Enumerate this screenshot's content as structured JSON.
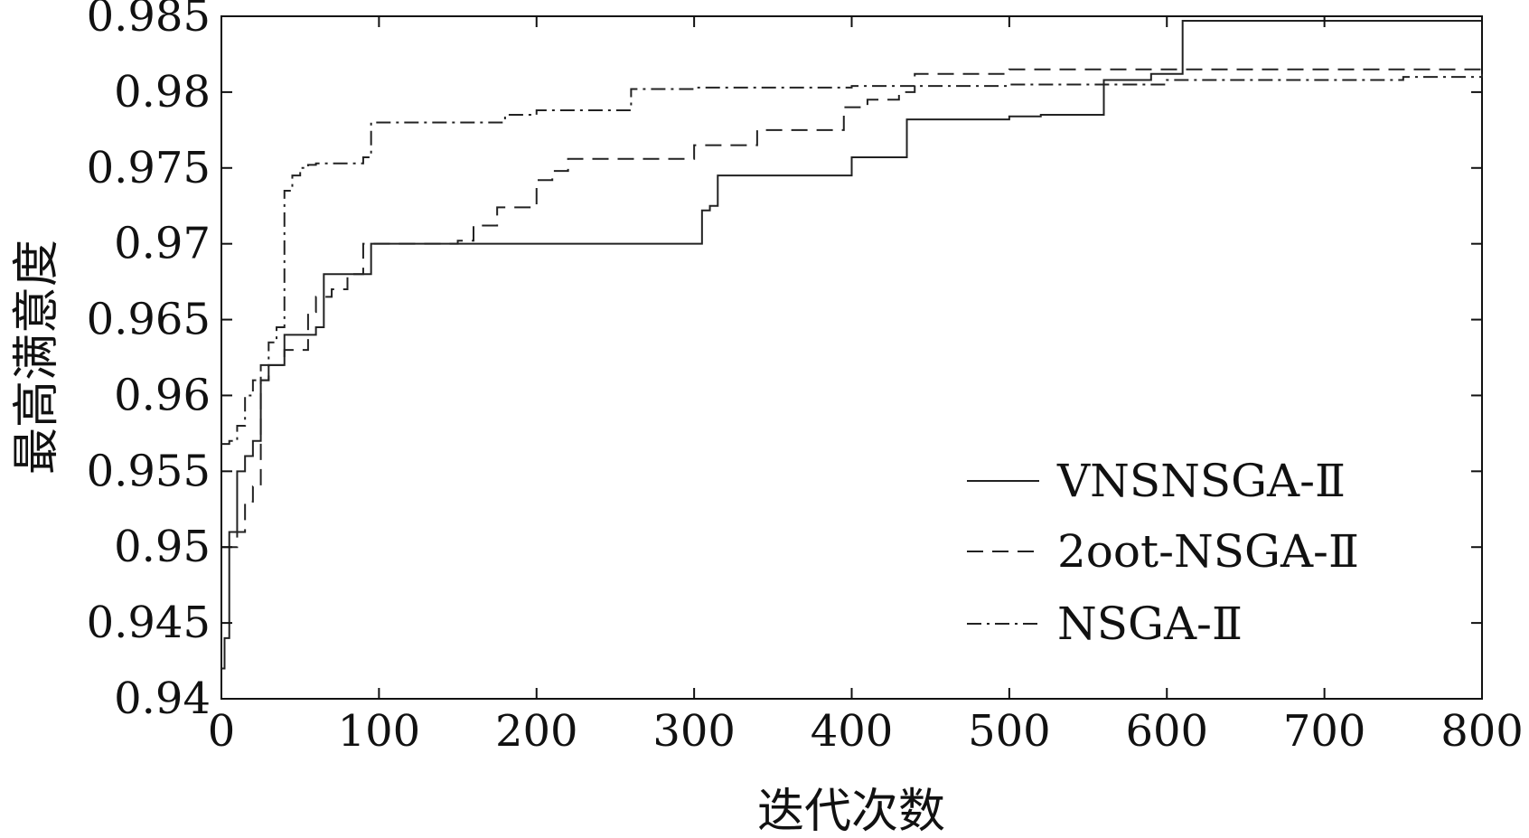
{
  "chart_data": {
    "type": "line",
    "title": "",
    "xlabel": "迭代次数",
    "ylabel": "最高满意度",
    "xlim": [
      0,
      800
    ],
    "ylim": [
      0.94,
      0.985
    ],
    "xticks": [
      0,
      100,
      200,
      300,
      400,
      500,
      600,
      700,
      800
    ],
    "xtick_labels": [
      "0",
      "100",
      "200",
      "300",
      "400",
      "500",
      "600",
      "700",
      "800"
    ],
    "yticks": [
      0.94,
      0.945,
      0.95,
      0.955,
      0.96,
      0.965,
      0.97,
      0.975,
      0.98,
      0.985
    ],
    "ytick_labels": [
      "0.94",
      "0.945",
      "0.95",
      "0.955",
      "0.96",
      "0.965",
      "0.97",
      "0.975",
      "0.98",
      "0.985"
    ],
    "grid": false,
    "legend_position": "bottom-right",
    "series": [
      {
        "name": "VNSNSGA-Ⅱ",
        "dash": "solid",
        "x": [
          0,
          2,
          5,
          10,
          15,
          20,
          25,
          30,
          40,
          50,
          60,
          65,
          75,
          90,
          95,
          150,
          200,
          250,
          300,
          305,
          310,
          315,
          350,
          380,
          400,
          420,
          435,
          450,
          500,
          520,
          555,
          560,
          590,
          600,
          605,
          610,
          650,
          700,
          750,
          800
        ],
        "y": [
          0.942,
          0.944,
          0.951,
          0.955,
          0.956,
          0.957,
          0.961,
          0.962,
          0.964,
          0.964,
          0.9645,
          0.968,
          0.968,
          0.968,
          0.97,
          0.97,
          0.97,
          0.97,
          0.97,
          0.9722,
          0.9725,
          0.9745,
          0.9745,
          0.9745,
          0.9757,
          0.9757,
          0.9782,
          0.9782,
          0.9784,
          0.9785,
          0.9785,
          0.9808,
          0.9812,
          0.9812,
          0.9812,
          0.9847,
          0.9847,
          0.9847,
          0.9847,
          0.9847
        ]
      },
      {
        "name": "2oot-NSGA-Ⅱ",
        "dash": "dashed",
        "x": [
          0,
          5,
          10,
          15,
          20,
          25,
          30,
          40,
          55,
          60,
          70,
          80,
          90,
          100,
          150,
          160,
          175,
          190,
          200,
          210,
          220,
          250,
          280,
          300,
          330,
          340,
          370,
          390,
          395,
          410,
          430,
          440,
          500,
          550,
          600,
          650,
          700,
          750,
          800
        ],
        "y": [
          0.95,
          0.95,
          0.951,
          0.953,
          0.954,
          0.961,
          0.962,
          0.963,
          0.9655,
          0.9665,
          0.967,
          0.968,
          0.97,
          0.97,
          0.9702,
          0.9712,
          0.9724,
          0.9724,
          0.9742,
          0.9748,
          0.9756,
          0.9756,
          0.9756,
          0.9765,
          0.9765,
          0.9775,
          0.9775,
          0.9775,
          0.979,
          0.9795,
          0.98,
          0.9812,
          0.9815,
          0.9815,
          0.9815,
          0.9815,
          0.9815,
          0.9815,
          0.9815
        ]
      },
      {
        "name": "NSGA-Ⅱ",
        "dash": "dashdot",
        "x": [
          0,
          5,
          10,
          15,
          20,
          25,
          30,
          35,
          40,
          45,
          50,
          55,
          60,
          70,
          85,
          90,
          95,
          150,
          180,
          200,
          240,
          255,
          260,
          300,
          400,
          500,
          600,
          700,
          750,
          800
        ],
        "y": [
          0.9568,
          0.957,
          0.958,
          0.96,
          0.961,
          0.962,
          0.9635,
          0.9645,
          0.9735,
          0.9745,
          0.975,
          0.9752,
          0.9753,
          0.9753,
          0.9753,
          0.9757,
          0.978,
          0.978,
          0.9785,
          0.9788,
          0.9788,
          0.9788,
          0.9802,
          0.9803,
          0.9804,
          0.9805,
          0.9808,
          0.9808,
          0.981,
          0.9812
        ]
      }
    ]
  }
}
